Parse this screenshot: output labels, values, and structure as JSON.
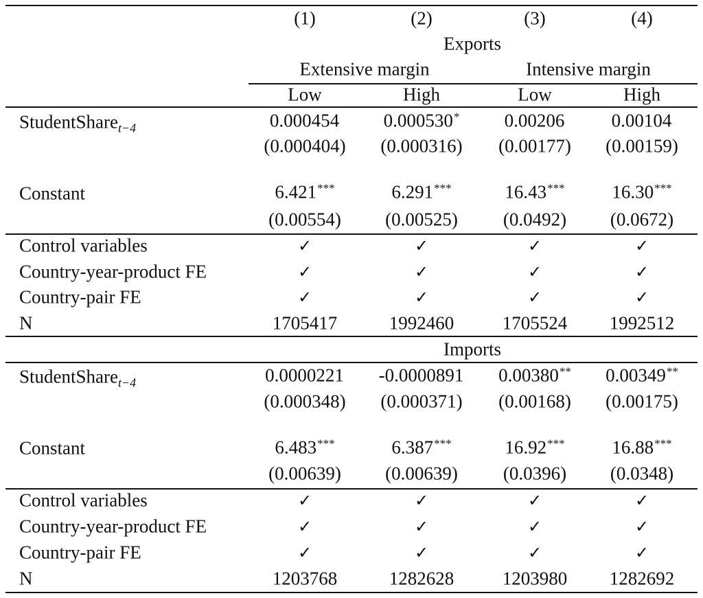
{
  "table": {
    "column_numbers": [
      "(1)",
      "(2)",
      "(3)",
      "(4)"
    ],
    "top_group": "Exports",
    "subgroups": [
      "Extensive margin",
      "Intensive margin"
    ],
    "levels": [
      "Low",
      "High",
      "Low",
      "High"
    ],
    "check_mark": "✓",
    "exports": {
      "student_share": {
        "label_main": "StudentShare",
        "label_sub": "t−4",
        "coef": [
          "0.000454",
          "0.000530",
          "0.00206",
          "0.00104"
        ],
        "stars": [
          "",
          "*",
          "",
          ""
        ],
        "se": [
          "(0.000404)",
          "(0.000316)",
          "(0.00177)",
          "(0.00159)"
        ]
      },
      "constant": {
        "label": "Constant",
        "coef": [
          "6.421",
          "6.291",
          "16.43",
          "16.30"
        ],
        "stars": [
          "***",
          "***",
          "***",
          "***"
        ],
        "se": [
          "(0.00554)",
          "(0.00525)",
          "(0.0492)",
          "(0.0672)"
        ]
      },
      "controls": [
        {
          "label": "Control variables"
        },
        {
          "label": "Country-year-product FE"
        },
        {
          "label": "Country-pair FE"
        }
      ],
      "n_label": "N",
      "n": [
        "1705417",
        "1992460",
        "1705524",
        "1992512"
      ]
    },
    "imports_title": "Imports",
    "imports": {
      "student_share": {
        "label_main": "StudentShare",
        "label_sub": "t−4",
        "coef": [
          "0.0000221",
          "-0.0000891",
          "0.00380",
          "0.00349"
        ],
        "stars": [
          "",
          "",
          "**",
          "**"
        ],
        "se": [
          "(0.000348)",
          "(0.000371)",
          "(0.00168)",
          "(0.00175)"
        ]
      },
      "constant": {
        "label": "Constant",
        "coef": [
          "6.483",
          "6.387",
          "16.92",
          "16.88"
        ],
        "stars": [
          "***",
          "***",
          "***",
          "***"
        ],
        "se": [
          "(0.00639)",
          "(0.00639)",
          "(0.0396)",
          "(0.0348)"
        ]
      },
      "controls": [
        {
          "label": "Control variables"
        },
        {
          "label": "Country-year-product FE"
        },
        {
          "label": "Country-pair FE"
        }
      ],
      "n_label": "N",
      "n": [
        "1203768",
        "1282628",
        "1203980",
        "1282692"
      ]
    }
  }
}
